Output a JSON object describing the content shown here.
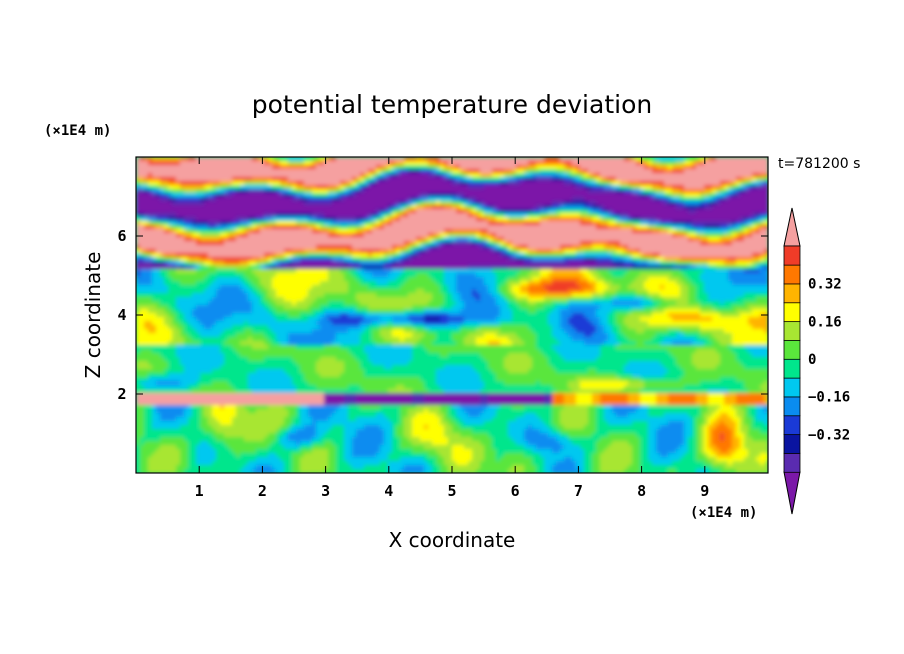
{
  "chart_data": {
    "type": "heatmap",
    "title": "potential temperature deviation",
    "xlabel": "X coordinate",
    "ylabel": "Z coordinate",
    "x_unit": "(×1E4 m)",
    "y_unit": "(×1E4 m)",
    "time_label": "t=781200 s",
    "xlim": [
      0,
      10
    ],
    "ylim": [
      0,
      8
    ],
    "x_ticks": [
      "1",
      "2",
      "3",
      "4",
      "5",
      "6",
      "7",
      "8",
      "9"
    ],
    "y_ticks": [
      "2",
      "4",
      "6"
    ],
    "x_tick_values": [
      1,
      2,
      3,
      4,
      5,
      6,
      7,
      8,
      9
    ],
    "y_tick_values": [
      2,
      4,
      6
    ],
    "colorbar": {
      "levels": [
        -0.48,
        -0.4,
        -0.32,
        -0.24,
        -0.16,
        -0.08,
        0,
        0.08,
        0.16,
        0.24,
        0.32,
        0.4,
        0.48
      ],
      "labels": [
        "0.32",
        "0.16",
        "0",
        "−0.16",
        "−0.32"
      ],
      "label_values": [
        0.32,
        0.16,
        0,
        -0.16,
        -0.32
      ],
      "colors": [
        "#7b18a8",
        "#5a2bb0",
        "#0a14a0",
        "#1a3ad6",
        "#0a8cf0",
        "#00c8f0",
        "#00e68c",
        "#5ae63c",
        "#a8e632",
        "#ffff00",
        "#ffb400",
        "#ff7800",
        "#f03c28",
        "#f5a0a0"
      ],
      "extend": "both"
    },
    "grid": false
  }
}
